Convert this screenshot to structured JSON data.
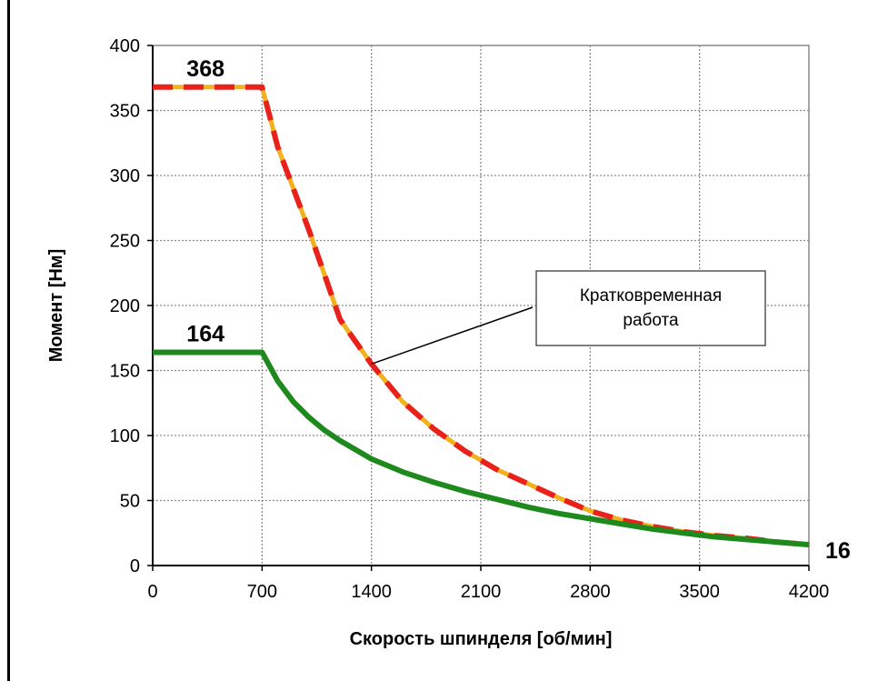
{
  "chart_data": {
    "type": "line",
    "xlabel": "Скорость шпинделя [об/мин]",
    "ylabel": "Момент [Нм]",
    "xlim": [
      0,
      4200
    ],
    "ylim": [
      0,
      400
    ],
    "x_ticks": [
      "0",
      "700",
      "1400",
      "2100",
      "2800",
      "3500",
      "4200"
    ],
    "y_ticks": [
      "0",
      "50",
      "100",
      "150",
      "200",
      "250",
      "300",
      "350",
      "400"
    ],
    "grid": true,
    "series": [
      {
        "style": "dashed",
        "colors": [
          "#e8211b",
          "#f2b21d"
        ],
        "x": [
          0,
          700,
          800,
          1000,
          1200,
          1400,
          1600,
          1800,
          2000,
          2200,
          2400,
          2600,
          2800,
          3000,
          3200,
          3400,
          3600,
          3800,
          4000,
          4200
        ],
        "y": [
          368,
          368,
          322,
          258,
          189,
          155,
          126,
          105,
          88,
          74,
          63,
          52,
          42,
          35,
          30,
          26,
          23,
          21,
          18,
          16
        ]
      },
      {
        "style": "solid",
        "colors": [
          "#1e8a1e"
        ],
        "x": [
          0,
          700,
          800,
          900,
          1000,
          1100,
          1200,
          1400,
          1600,
          1800,
          2000,
          2200,
          2400,
          2600,
          2800,
          3000,
          3200,
          3400,
          3600,
          3800,
          4000,
          4200
        ],
        "y": [
          164,
          164,
          142,
          126,
          114,
          104,
          96,
          82,
          72,
          64,
          57,
          51,
          45,
          40,
          36,
          32,
          28,
          25,
          22,
          20,
          18,
          16
        ]
      }
    ],
    "data_labels": [
      {
        "text": "368",
        "x": 350,
        "y": 368
      },
      {
        "text": "164",
        "x": 350,
        "y": 164
      },
      {
        "text": "16",
        "x": 4200,
        "y": 16
      }
    ],
    "annotation": {
      "lines": [
        "Кратковременная",
        "работа"
      ],
      "points_to": {
        "x": 1400,
        "y": 155
      }
    }
  }
}
